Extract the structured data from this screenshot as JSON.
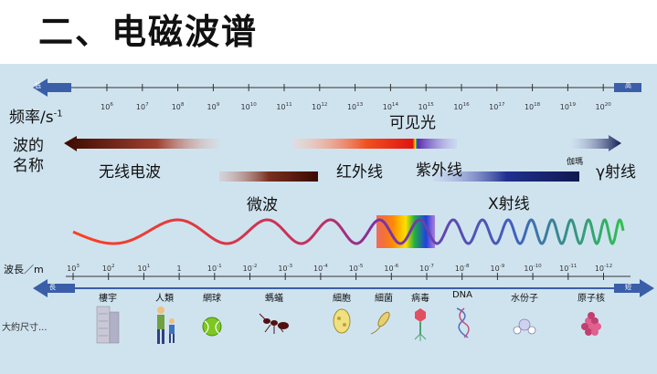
{
  "title": "二、电磁波谱",
  "colors": {
    "panel": "#cfe3ef",
    "arrow": "#3a5fa8",
    "axis": "#333333"
  },
  "freq": {
    "label": "频率/s",
    "label_sup": "-1",
    "low": "低",
    "high": "高",
    "ticks": [
      {
        "base": "10",
        "exp": "6"
      },
      {
        "base": "10",
        "exp": "7"
      },
      {
        "base": "10",
        "exp": "8"
      },
      {
        "base": "10",
        "exp": "9"
      },
      {
        "base": "10",
        "exp": "10"
      },
      {
        "base": "10",
        "exp": "11"
      },
      {
        "base": "10",
        "exp": "12"
      },
      {
        "base": "10",
        "exp": "13"
      },
      {
        "base": "10",
        "exp": "14"
      },
      {
        "base": "10",
        "exp": "15"
      },
      {
        "base": "10",
        "exp": "16"
      },
      {
        "base": "10",
        "exp": "17"
      },
      {
        "base": "10",
        "exp": "18"
      },
      {
        "base": "10",
        "exp": "19"
      },
      {
        "base": "10",
        "exp": "20"
      }
    ]
  },
  "wave_name_label": {
    "line1": "波的",
    "line2": "名称"
  },
  "bands": {
    "radio": "无线电波",
    "micro": "微波",
    "ir": "红外线",
    "visible": "可见光",
    "uv": "紫外线",
    "xray": "X射线",
    "gamma_small": "伽瑪",
    "gamma": "γ射线"
  },
  "wavelength": {
    "label": "波長／m",
    "long": "長",
    "short": "短",
    "ticks": [
      {
        "base": "10",
        "exp": "3"
      },
      {
        "base": "10",
        "exp": "2"
      },
      {
        "base": "10",
        "exp": "1"
      },
      {
        "base": "1",
        "exp": ""
      },
      {
        "base": "10",
        "exp": "-1"
      },
      {
        "base": "10",
        "exp": "-2"
      },
      {
        "base": "10",
        "exp": "-3"
      },
      {
        "base": "10",
        "exp": "-4"
      },
      {
        "base": "10",
        "exp": "-5"
      },
      {
        "base": "10",
        "exp": "-6"
      },
      {
        "base": "10",
        "exp": "-7"
      },
      {
        "base": "10",
        "exp": "-8"
      },
      {
        "base": "10",
        "exp": "-9"
      },
      {
        "base": "10",
        "exp": "-10"
      },
      {
        "base": "10",
        "exp": "-11"
      },
      {
        "base": "10",
        "exp": "-12"
      }
    ]
  },
  "size_label": "大約尺寸...",
  "objects": [
    {
      "name": "樓宇",
      "icon": "building-icon"
    },
    {
      "name": "人類",
      "icon": "people-icon"
    },
    {
      "name": "網球",
      "icon": "tennis-ball-icon"
    },
    {
      "name": "螞蟻",
      "icon": "ant-icon"
    },
    {
      "name": "細胞",
      "icon": "cell-icon"
    },
    {
      "name": "細菌",
      "icon": "bacteria-icon"
    },
    {
      "name": "病毒",
      "icon": "virus-icon"
    },
    {
      "name": "DNA",
      "icon": "dna-icon"
    },
    {
      "name": "水份子",
      "icon": "water-molecule-icon"
    },
    {
      "name": "原子核",
      "icon": "nucleus-icon"
    }
  ]
}
